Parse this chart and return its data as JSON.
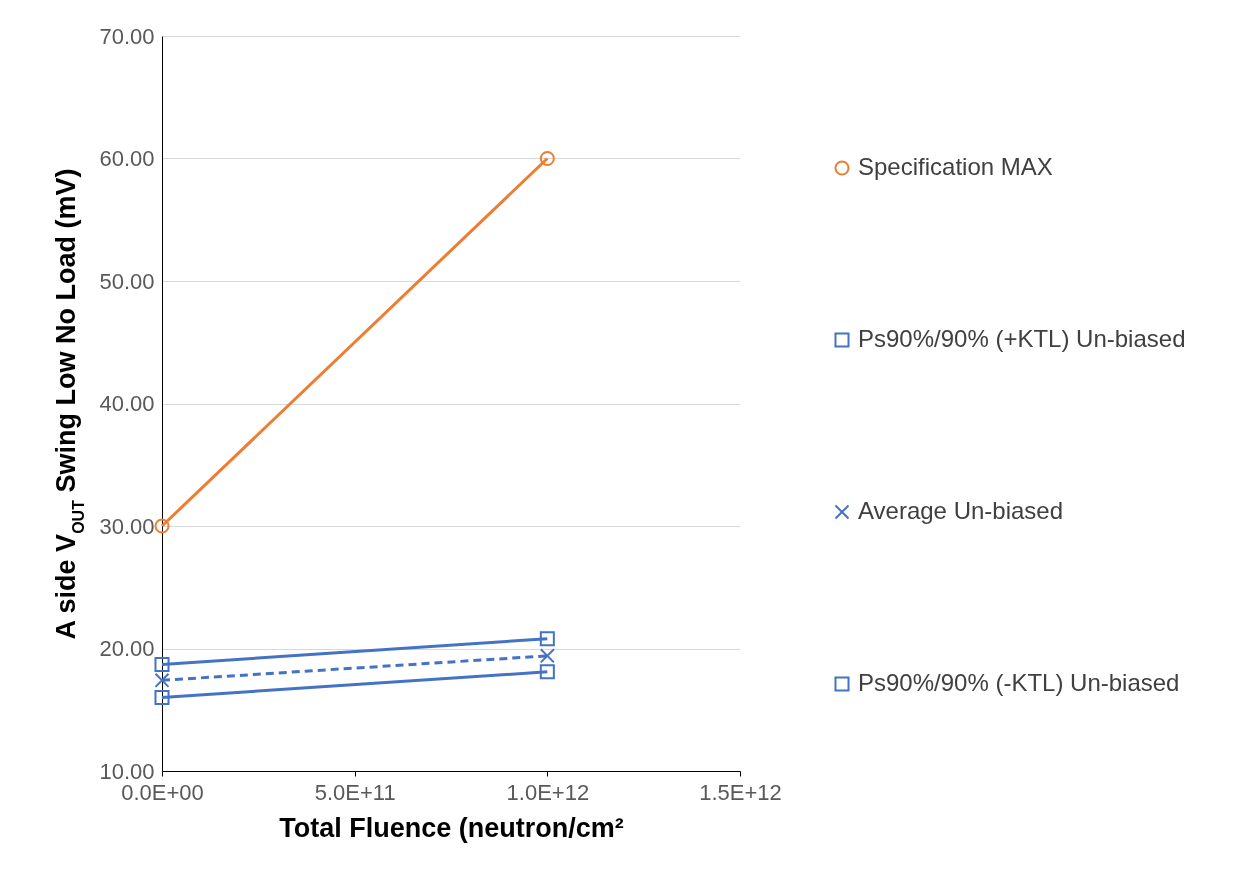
{
  "chart_data": {
    "type": "line",
    "xlabel": "Total Fluence (neutron/cm²",
    "ylabel": "A side V$_{OUT}$ Swing Low  No Load (mV)",
    "x": [
      0,
      1000000000000.0
    ],
    "series": [
      {
        "name": "Specification MAX",
        "color": "#ed7d31",
        "values": [
          30,
          60
        ],
        "marker": "circle",
        "line_style": "solid"
      },
      {
        "name": "Ps90%/90% (+KTL) Un-biased",
        "color": "#4472c4",
        "values": [
          18.7,
          20.8
        ],
        "marker": "square",
        "line_style": "solid"
      },
      {
        "name": "Average Un-biased",
        "color": "#4472c4",
        "values": [
          17.4,
          19.4
        ],
        "marker": "cross",
        "line_style": "dashed"
      },
      {
        "name": "Ps90%/90% (-KTL) Un-biased",
        "color": "#4472c4",
        "values": [
          16.0,
          18.1
        ],
        "marker": "square",
        "line_style": "solid"
      }
    ],
    "xlim": [
      0,
      1500000000000.0
    ],
    "xticks": [
      {
        "value": 0,
        "label": "0.0E+00"
      },
      {
        "value": 500000000000.0,
        "label": "5.0E+11"
      },
      {
        "value": 1000000000000.0,
        "label": "1.0E+12"
      },
      {
        "value": 1500000000000.0,
        "label": "1.5E+12"
      }
    ],
    "ylim": [
      10,
      70
    ],
    "yticks": [
      {
        "value": 10,
        "label": "10.00"
      },
      {
        "value": 20,
        "label": "20.00"
      },
      {
        "value": 30,
        "label": "30.00"
      },
      {
        "value": 40,
        "label": "40.00"
      },
      {
        "value": 50,
        "label": "50.00"
      },
      {
        "value": 60,
        "label": "60.00"
      },
      {
        "value": 70,
        "label": "70.00"
      }
    ],
    "grid": "y",
    "legend": "right"
  }
}
